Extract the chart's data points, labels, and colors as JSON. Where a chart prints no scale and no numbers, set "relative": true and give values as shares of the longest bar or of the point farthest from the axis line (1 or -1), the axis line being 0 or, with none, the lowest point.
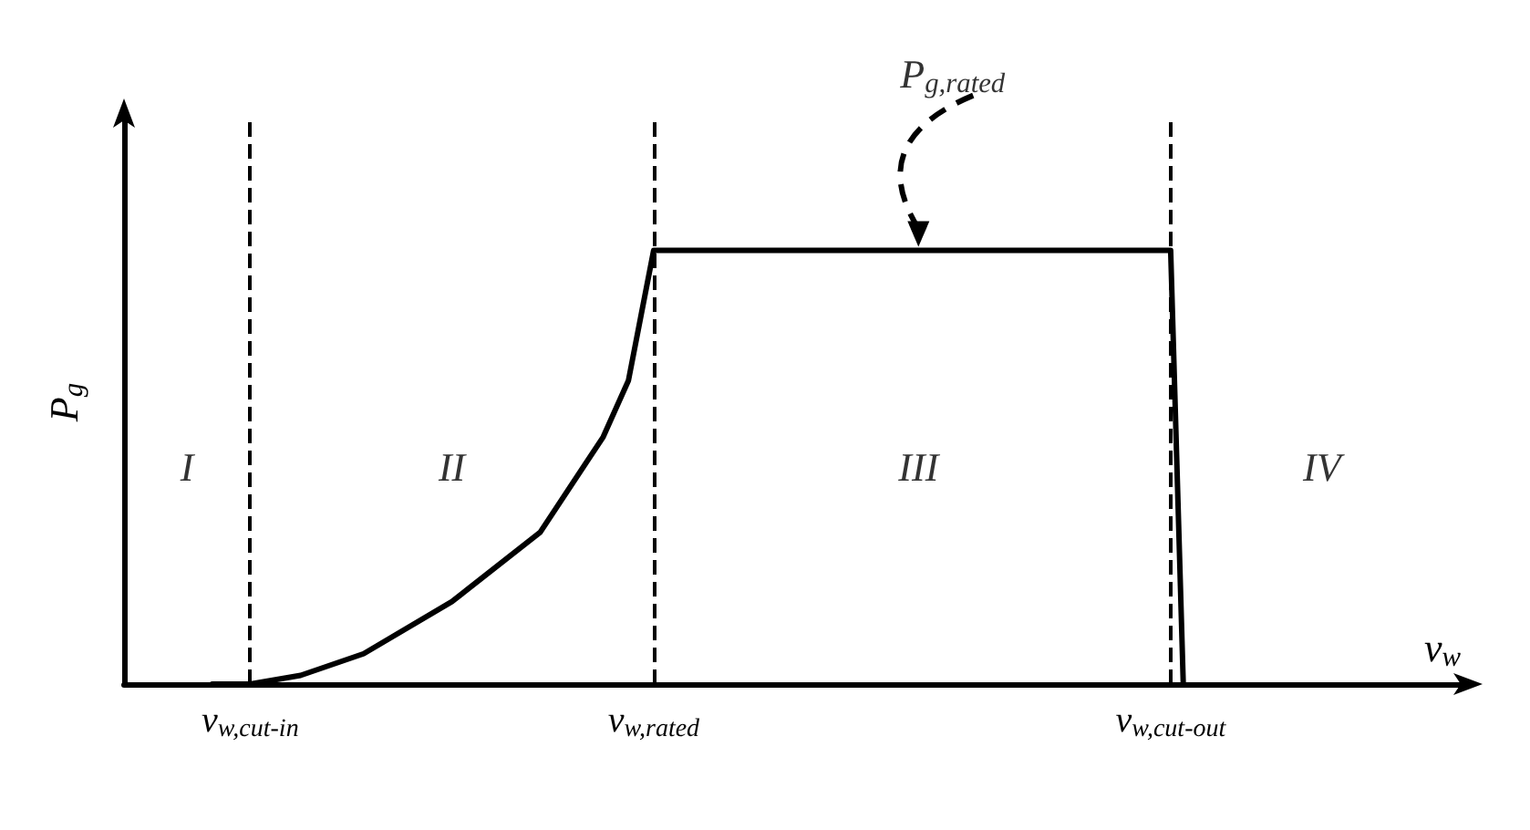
{
  "chart_data": {
    "type": "line",
    "relative": true,
    "xlabel": "v$_{w}$",
    "ylabel": "P$_{g}$",
    "categories": [
      null,
      null,
      null,
      null,
      null,
      null,
      null,
      null,
      null,
      null,
      "v$_{w,cut-in}$",
      null,
      null,
      null,
      null,
      null,
      null,
      null,
      null,
      null,
      null,
      null,
      null,
      null,
      null,
      null,
      null,
      null,
      null,
      null,
      null,
      null,
      null,
      null,
      null,
      null,
      null,
      null,
      null,
      null,
      null,
      null,
      "v$_{w,rated}$",
      null,
      null,
      null,
      null,
      null,
      null,
      null,
      null,
      null,
      null,
      null,
      null,
      null,
      null,
      null,
      null,
      null,
      null,
      null,
      null,
      null,
      null,
      null,
      null,
      null,
      null,
      null,
      null,
      null,
      null,
      null,
      null,
      null,
      null,
      null,
      null,
      null,
      null,
      null,
      null,
      "v$_{w,cut-out}$",
      null,
      null,
      null,
      null,
      null,
      null,
      null,
      null,
      null,
      null,
      null,
      null,
      null,
      null,
      null,
      null,
      null,
      null,
      null,
      null,
      null,
      null,
      null
    ],
    "values": [
      null,
      null,
      null,
      null,
      null,
      null,
      null,
      0,
      null,
      null,
      0,
      null,
      null,
      null,
      0.02,
      null,
      null,
      null,
      null,
      0.07,
      null,
      null,
      null,
      null,
      null,
      null,
      0.19,
      null,
      null,
      null,
      null,
      null,
      null,
      0.35,
      null,
      null,
      null,
      null,
      0.57,
      null,
      0.7,
      0.85,
      1,
      null,
      null,
      null,
      null,
      null,
      null,
      null,
      null,
      null,
      null,
      null,
      null,
      null,
      null,
      null,
      null,
      null,
      null,
      null,
      null,
      null,
      null,
      null,
      null,
      null,
      null,
      null,
      null,
      null,
      null,
      null,
      null,
      null,
      null,
      null,
      null,
      null,
      null,
      null,
      null,
      1,
      0,
      null,
      null,
      null,
      null,
      null,
      null,
      null,
      null,
      null,
      null,
      null,
      null,
      null,
      null,
      null,
      null,
      null,
      null,
      null,
      null,
      null,
      null
    ],
    "color": "#000000",
    "marker": "none",
    "line_style": "solid",
    "grid": false,
    "ref_lines": [
      {
        "axis": "x",
        "value": "v$_{w,cut-in}$",
        "line_style": "dashed"
      },
      {
        "axis": "x",
        "value": "v$_{w,rated}$",
        "line_style": "dashed"
      },
      {
        "axis": "x",
        "value": "v$_{w,cut-out}$",
        "line_style": "dashed"
      }
    ],
    "annotations": [
      "I",
      "II",
      "III",
      "IV",
      "P$_{g,rated}$"
    ]
  }
}
